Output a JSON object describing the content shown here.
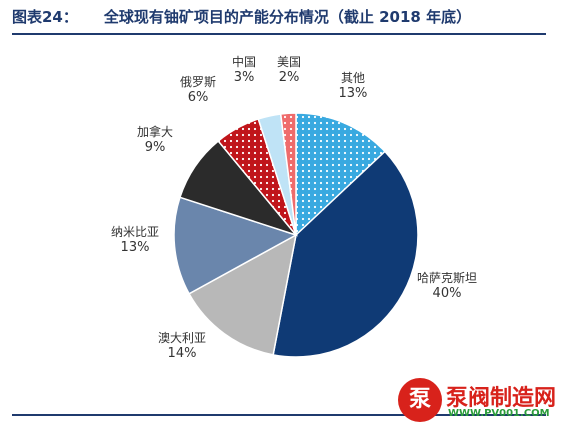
{
  "title": {
    "figure": "图表24：",
    "text": "全球现有铀矿项目的产能分布情况（截止 2018 年底）"
  },
  "chart_data": {
    "type": "pie",
    "slices": [
      {
        "name": "其他",
        "value": 13,
        "label": "13%",
        "color": "#39a9e0",
        "pattern": "dots-white"
      },
      {
        "name": "哈萨克斯坦",
        "value": 40,
        "label": "40%",
        "color": "#0f3a75",
        "pattern": "none"
      },
      {
        "name": "澳大利亚",
        "value": 14,
        "label": "14%",
        "color": "#b8b8b8",
        "pattern": "none"
      },
      {
        "name": "纳米比亚",
        "value": 13,
        "label": "13%",
        "color": "#6a86ac",
        "pattern": "none"
      },
      {
        "name": "加拿大",
        "value": 9,
        "label": "9%",
        "color": "#2b2b2b",
        "pattern": "none"
      },
      {
        "name": "俄罗斯",
        "value": 6,
        "label": "6%",
        "color": "#c0151b",
        "pattern": "dots-white"
      },
      {
        "name": "中国",
        "value": 3,
        "label": "3%",
        "color": "#bfe3f6",
        "pattern": "none"
      },
      {
        "name": "美国",
        "value": 2,
        "label": "2%",
        "color": "#ef6c6c",
        "pattern": "dots-white"
      }
    ],
    "start_angle_deg": 0,
    "direction": "clockwise"
  },
  "watermark": {
    "logo_text": "泵",
    "brand": "泵阀制造网",
    "url": "WWW.PV001.COM"
  }
}
